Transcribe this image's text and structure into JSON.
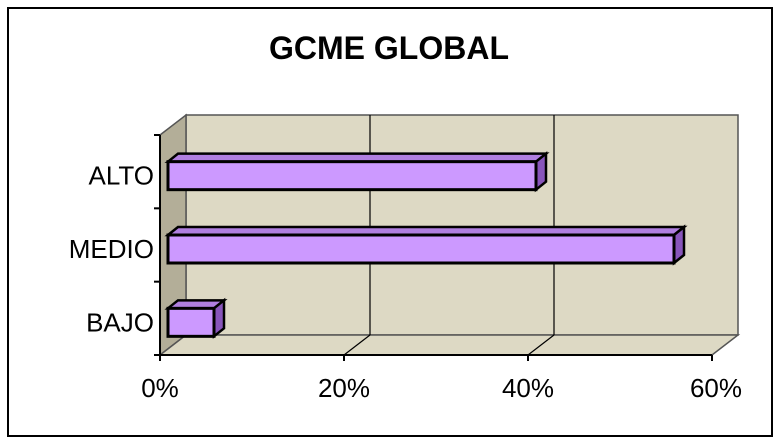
{
  "chart_data": {
    "type": "bar",
    "orientation": "horizontal",
    "style": "3d",
    "title": "GCME GLOBAL",
    "categories": [
      "ALTO",
      "MEDIO",
      "BAJO"
    ],
    "values": [
      40,
      55,
      5
    ],
    "xlim": [
      0,
      60
    ],
    "x_ticks": [
      "0%",
      "20%",
      "40%",
      "60%"
    ],
    "grid": true,
    "legend": "none",
    "colors": {
      "bar": "#cc99ff",
      "bar_top": "#b07fe0",
      "bar_side": "#8855bb",
      "back_wall": "#ddd9c4",
      "side_wall": "#b3ae98",
      "gridline": "#000000"
    }
  }
}
